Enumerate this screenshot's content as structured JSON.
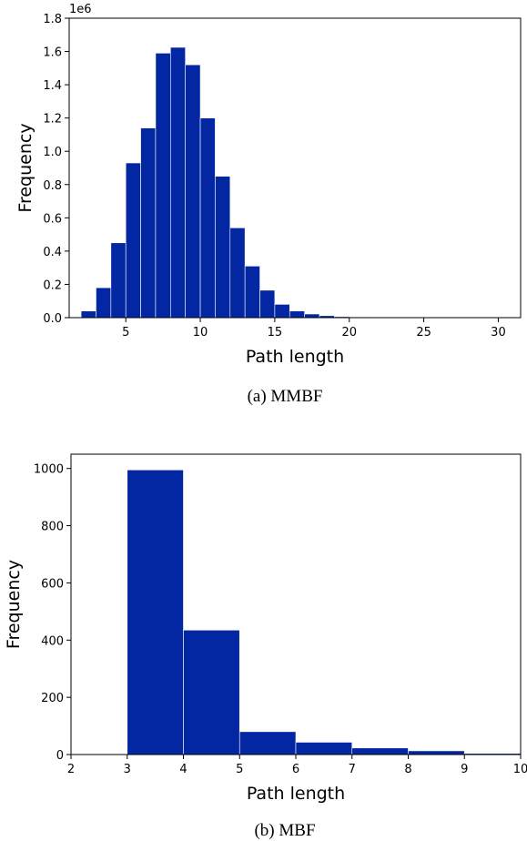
{
  "chart_data": [
    {
      "type": "bar",
      "caption": "(a) MMBF",
      "xlabel": "Path length",
      "ylabel": "Frequency",
      "y_offset_text": "1e6",
      "xlim": [
        1.2,
        31.5
      ],
      "ylim": [
        0,
        1800000
      ],
      "xticks": [
        5,
        10,
        15,
        20,
        25,
        30
      ],
      "yticks": [
        0,
        200000,
        400000,
        600000,
        800000,
        1000000,
        1200000,
        1400000,
        1600000,
        1800000
      ],
      "ytick_labels": [
        "0.0",
        "0.2",
        "0.4",
        "0.6",
        "0.8",
        "1.0",
        "1.2",
        "1.4",
        "1.6",
        "1.8"
      ],
      "bin_edges": [
        2,
        3,
        4,
        5,
        6,
        7,
        8,
        9,
        10,
        11,
        12,
        13,
        14,
        15,
        16,
        17,
        18,
        19,
        20,
        21,
        22,
        23,
        24,
        25,
        26,
        27,
        28,
        29,
        30,
        31
      ],
      "values": [
        40000,
        180000,
        450000,
        930000,
        1140000,
        1590000,
        1625000,
        1520000,
        1200000,
        850000,
        540000,
        310000,
        165000,
        80000,
        40000,
        22000,
        12000,
        6000,
        3000,
        2000,
        1500,
        1000,
        800,
        600,
        400,
        300,
        200,
        150,
        100
      ],
      "bar_color": "#0327a3"
    },
    {
      "type": "bar",
      "caption": "(b) MBF",
      "xlabel": "Path length",
      "ylabel": "Frequency",
      "xlim": [
        2,
        10
      ],
      "ylim": [
        0,
        1050
      ],
      "xticks": [
        2,
        3,
        4,
        5,
        6,
        7,
        8,
        9,
        10
      ],
      "yticks": [
        0,
        200,
        400,
        600,
        800,
        1000
      ],
      "bin_edges": [
        3,
        4,
        5,
        6,
        7,
        8,
        9,
        10
      ],
      "values": [
        995,
        435,
        80,
        43,
        23,
        13,
        4
      ],
      "bar_color": "#0327a3"
    }
  ]
}
